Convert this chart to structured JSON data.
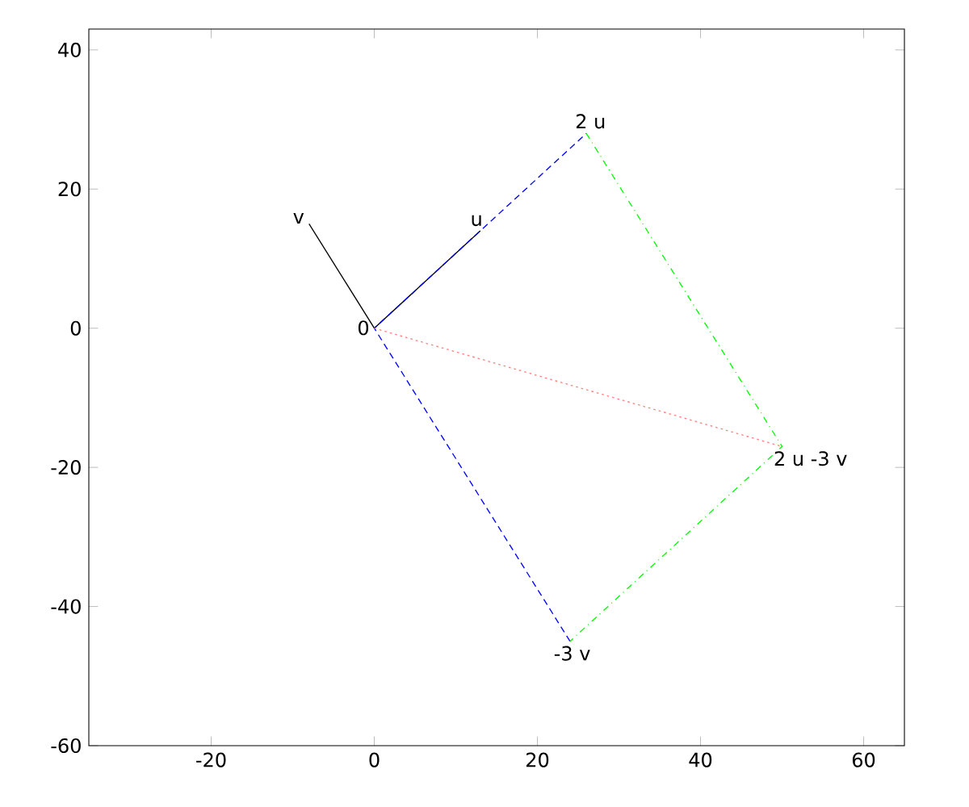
{
  "chart_data": {
    "type": "line",
    "series": [
      {
        "color": "#000000",
        "x": [
          0,
          13
        ],
        "values": [
          0,
          14
        ],
        "line_style": "solid"
      },
      {
        "color": "#000000",
        "x": [
          0,
          -8
        ],
        "values": [
          0,
          15
        ],
        "line_style": "solid"
      },
      {
        "color": "#0000ff",
        "x": [
          24,
          0,
          26
        ],
        "values": [
          -45,
          0,
          28
        ],
        "line_style": "dashed"
      },
      {
        "color": "#00ff00",
        "x": [
          26,
          50,
          24
        ],
        "values": [
          28,
          -17,
          -45
        ],
        "line_style": "dashdot"
      },
      {
        "color": "#ff8080",
        "x": [
          0,
          50
        ],
        "values": [
          0,
          -17
        ],
        "line_style": "dotted"
      }
    ],
    "annotations": [
      {
        "text": "0",
        "x": 0,
        "y": 0
      },
      {
        "text": "u",
        "x": 13,
        "y": 14
      },
      {
        "text": "v",
        "x": -8,
        "y": 15
      },
      {
        "text": "2 u",
        "x": 26,
        "y": 28
      },
      {
        "text": "-3 v",
        "x": 24,
        "y": -45
      },
      {
        "text": "2 u -3 v",
        "x": 50,
        "y": -17
      }
    ],
    "xlim": [
      -35,
      65
    ],
    "xticks": [
      -20,
      0,
      20,
      40,
      60
    ],
    "ylim": [
      -60,
      43
    ],
    "yticks": [
      -60,
      -40,
      -20,
      0,
      20,
      40
    ],
    "grid": false,
    "marker": "none"
  }
}
